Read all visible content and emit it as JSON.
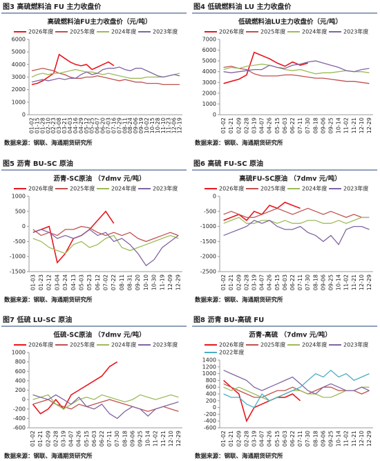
{
  "chart_data": [
    {
      "type": "line",
      "heading": "图3  高硫燃料油 FU 主力收盘价",
      "title": "高硫燃料油FU主力收盘价（元/吨）",
      "source": "数据来源：钢联、海通期货研究所",
      "categories": [
        "01-02",
        "01-15",
        "01-28",
        "02-10",
        "02-23",
        "03-08",
        "03-21",
        "04-03",
        "04-16",
        "04-29",
        "05-12",
        "05-25",
        "06-07",
        "06-20",
        "07-03",
        "07-16",
        "07-29",
        "08-11",
        "08-24",
        "09-06",
        "09-19",
        "10-02",
        "10-15",
        "10-28",
        "11-10",
        "11-23",
        "12-06",
        "12-19"
      ],
      "ylim": [
        0,
        6000
      ],
      "yticks": [
        0,
        1000,
        2000,
        3000,
        4000,
        5000,
        6000
      ],
      "grid": false,
      "series": [
        {
          "name": "2026年度",
          "color": "#e8141b",
          "values": [
            2400,
            2500,
            2700,
            3000,
            3300,
            4800,
            4500,
            4200,
            4000,
            3900,
            4000,
            3600,
            3800,
            4000,
            4200,
            3900,
            null,
            null,
            null,
            null,
            null,
            null,
            null,
            null,
            null,
            null,
            null,
            null
          ]
        },
        {
          "name": "2025年度",
          "color": "#c0504d",
          "values": [
            3500,
            3600,
            3700,
            3600,
            3500,
            3300,
            3200,
            3000,
            2900,
            2900,
            3000,
            3000,
            3100,
            3000,
            2900,
            2800,
            2700,
            2800,
            2700,
            2600,
            2600,
            2500,
            2500,
            2500,
            2400,
            2400,
            2400,
            2400
          ]
        },
        {
          "name": "2024年度",
          "color": "#9bbb59",
          "values": [
            3000,
            3200,
            3300,
            3200,
            3300,
            3300,
            3400,
            3500,
            3600,
            3500,
            3400,
            3400,
            3300,
            3200,
            3300,
            3200,
            3100,
            3000,
            2900,
            2900,
            2900,
            3000,
            3000,
            3000,
            3000,
            3100,
            3200,
            3300
          ]
        },
        {
          "name": "2023年度",
          "color": "#8064a2",
          "values": [
            2600,
            2700,
            2800,
            2700,
            2800,
            2900,
            2800,
            2900,
            2900,
            3200,
            3400,
            3200,
            3300,
            3600,
            3700,
            3700,
            3800,
            3600,
            3500,
            3700,
            3700,
            3500,
            3300,
            3100,
            3000,
            3100,
            3200,
            3100
          ]
        }
      ]
    },
    {
      "type": "line",
      "heading": "图4  低硫燃料油 LU 主力收盘价",
      "title": "低硫燃料油LU主力收盘价（元/吨）",
      "source": "数据来源：钢联、海通期货研究所",
      "categories": [
        "01-02",
        "01-21",
        "02-09",
        "02-28",
        "03-19",
        "04-07",
        "04-26",
        "05-15",
        "06-03",
        "06-22",
        "07-11",
        "07-30",
        "08-18",
        "09-06",
        "09-25",
        "10-14",
        "11-02",
        "11-21",
        "12-10",
        "12-29"
      ],
      "ylim": [
        0,
        7000
      ],
      "yticks": [
        0,
        1000,
        2000,
        3000,
        4000,
        5000,
        6000,
        7000
      ],
      "grid": false,
      "series": [
        {
          "name": "2026年度",
          "color": "#e8141b",
          "values": [
            2900,
            3100,
            3300,
            3700,
            5800,
            5500,
            5200,
            4800,
            4500,
            4900,
            4600,
            4800,
            null,
            null,
            null,
            null,
            null,
            null,
            null,
            null
          ]
        },
        {
          "name": "2025年度",
          "color": "#c0504d",
          "values": [
            4400,
            4500,
            4300,
            4200,
            3800,
            3600,
            3600,
            3600,
            3700,
            3700,
            3600,
            3500,
            3400,
            3400,
            3300,
            3200,
            3100,
            3100,
            3000,
            2900
          ]
        },
        {
          "name": "2024年度",
          "color": "#9bbb59",
          "values": [
            4200,
            4400,
            4300,
            4500,
            4600,
            4700,
            4600,
            4400,
            4200,
            4100,
            4200,
            4000,
            3800,
            3900,
            3900,
            4000,
            4100,
            4000,
            4000,
            3900
          ]
        },
        {
          "name": "2023年度",
          "color": "#8064a2",
          "values": [
            4000,
            3900,
            4000,
            4100,
            4200,
            4200,
            4600,
            4400,
            4300,
            4600,
            4700,
            4900,
            5000,
            4800,
            4600,
            4400,
            4100,
            4000,
            4200,
            4300
          ]
        }
      ]
    },
    {
      "type": "line",
      "heading": "图5  沥青 BU-SC 原油",
      "title": "沥青-SC原油 （7dmv 元/吨）",
      "source": "数据来源：钢联、海通期货研究所",
      "categories": [
        "01-03",
        "01-23",
        "02-12",
        "03-04",
        "03-24",
        "04-13",
        "05-03",
        "05-23",
        "06-12",
        "07-02",
        "07-22",
        "08-11",
        "08-31",
        "09-20",
        "10-10",
        "10-30",
        "11-19",
        "12-09",
        "12-29"
      ],
      "ylim": [
        -1500,
        1000
      ],
      "yticks": [
        -1500,
        -1000,
        -500,
        0,
        500,
        1000
      ],
      "grid": false,
      "series": [
        {
          "name": "2026年度",
          "color": "#e8141b",
          "values": [
            -200,
            -100,
            0,
            -1200,
            -900,
            -400,
            -300,
            -100,
            200,
            500,
            100,
            null,
            null,
            null,
            null,
            null,
            null,
            null,
            null
          ]
        },
        {
          "name": "2025年度",
          "color": "#c0504d",
          "values": [
            -100,
            -300,
            -200,
            -300,
            -100,
            -100,
            0,
            -50,
            -200,
            -300,
            -200,
            -300,
            -200,
            -400,
            -500,
            -400,
            -300,
            -200,
            -300
          ]
        },
        {
          "name": "2024年度",
          "color": "#9bbb59",
          "values": [
            -400,
            -500,
            -700,
            -800,
            -900,
            -600,
            -500,
            -700,
            -600,
            -400,
            -300,
            -700,
            -800,
            -700,
            -600,
            -500,
            -400,
            -300,
            -400
          ]
        },
        {
          "name": "2023年度",
          "color": "#8064a2",
          "values": [
            -200,
            -100,
            -200,
            -400,
            -300,
            -400,
            -300,
            -100,
            -300,
            -200,
            -500,
            -400,
            -600,
            -900,
            -1300,
            -1100,
            -700,
            -500,
            -300
          ]
        }
      ]
    },
    {
      "type": "line",
      "heading": "图6  高硫 FU-SC 原油",
      "title": "高硫FU-SC原油 （7dmv 元/吨）",
      "source": "数据来源：钢联、海通期货研究所",
      "categories": [
        "01-02",
        "01-21",
        "02-09",
        "02-28",
        "03-19",
        "04-07",
        "04-26",
        "05-15",
        "06-03",
        "06-22",
        "07-11",
        "07-30",
        "08-18",
        "09-06",
        "09-25",
        "10-14",
        "11-02",
        "11-21",
        "12-10",
        "12-29"
      ],
      "ylim": [
        -2500,
        0
      ],
      "yticks": [
        -2500,
        -2000,
        -1500,
        -1000,
        -500,
        0
      ],
      "grid": false,
      "series": [
        {
          "name": "2026年度",
          "color": "#e8141b",
          "values": [
            -800,
            -700,
            -600,
            -800,
            -500,
            -600,
            -300,
            -400,
            -200,
            -300,
            -400,
            null,
            null,
            null,
            null,
            null,
            null,
            null,
            null,
            null
          ]
        },
        {
          "name": "2025年度",
          "color": "#c0504d",
          "values": [
            -600,
            -500,
            -600,
            -700,
            -700,
            -600,
            -500,
            -400,
            -500,
            -600,
            -500,
            -400,
            -500,
            -600,
            -500,
            -600,
            -700,
            -600,
            -700,
            -700
          ]
        },
        {
          "name": "2024年度",
          "color": "#9bbb59",
          "values": [
            -900,
            -800,
            -700,
            -900,
            -900,
            -800,
            -800,
            -900,
            -800,
            -900,
            -900,
            -800,
            -800,
            -900,
            -900,
            -800,
            -900,
            -800,
            -700,
            -700
          ]
        },
        {
          "name": "2023年度",
          "color": "#8064a2",
          "values": [
            -1300,
            -1200,
            -1100,
            -1000,
            -800,
            -900,
            -800,
            -1000,
            -1100,
            -1100,
            -1000,
            -1200,
            -1300,
            -1500,
            -1300,
            -1600,
            -1100,
            -1000,
            -1000,
            -1100
          ]
        }
      ]
    },
    {
      "type": "line",
      "heading": "图7  低硫 LU-SC 原油",
      "title": "低硫-SC原油 （7dmv 元/吨）",
      "source": "数据来源：钢联、海通期货研究所",
      "categories": [
        "01-02",
        "01-21",
        "02-09",
        "02-28",
        "03-19",
        "04-07",
        "04-26",
        "05-15",
        "06-03",
        "06-22",
        "07-11",
        "07-30",
        "08-18",
        "09-06",
        "09-25",
        "10-14",
        "11-02",
        "11-21",
        "12-10",
        "12-29"
      ],
      "ylim": [
        -600,
        1000
      ],
      "yticks": [
        -600,
        -400,
        -200,
        0,
        200,
        400,
        600,
        800,
        1000
      ],
      "grid": false,
      "series": [
        {
          "name": "2026年度",
          "color": "#e8141b",
          "values": [
            -100,
            -300,
            -200,
            0,
            -200,
            100,
            200,
            300,
            400,
            500,
            700,
            800,
            null,
            null,
            null,
            null,
            null,
            null,
            null,
            null
          ]
        },
        {
          "name": "2025年度",
          "color": "#c0504d",
          "values": [
            -100,
            -50,
            0,
            -100,
            -150,
            -200,
            -100,
            -150,
            -100,
            -50,
            0,
            -50,
            -100,
            -150,
            -200,
            -250,
            -200,
            -150,
            -200,
            -250
          ]
        },
        {
          "name": "2024年度",
          "color": "#9bbb59",
          "values": [
            0,
            50,
            100,
            -100,
            -200,
            -100,
            0,
            50,
            0,
            100,
            50,
            0,
            -50,
            0,
            100,
            50,
            0,
            50,
            100,
            50
          ]
        },
        {
          "name": "2023年度",
          "color": "#8064a2",
          "values": [
            100,
            50,
            0,
            100,
            0,
            -100,
            50,
            -150,
            -200,
            -100,
            -300,
            -400,
            -250,
            -150,
            -200,
            -350,
            -200,
            -150,
            -100,
            -50
          ]
        }
      ]
    },
    {
      "type": "line",
      "heading": "图8  沥青 BU-高硫 FU",
      "title": "沥青-高硫 （7dmv 元/吨）",
      "source": "数据来源：钢联、海通期货研究所",
      "categories": [
        "01-02",
        "01-21",
        "02-09",
        "02-28",
        "03-19",
        "04-07",
        "04-26",
        "05-15",
        "06-03",
        "06-22",
        "07-11",
        "07-30",
        "08-18",
        "09-06",
        "09-25",
        "10-14",
        "11-02",
        "11-21",
        "12-10",
        "12-29"
      ],
      "ylim": [
        -600,
        1400
      ],
      "yticks": [
        -600,
        -400,
        -200,
        0,
        200,
        400,
        600,
        800,
        1000,
        1200,
        1400
      ],
      "grid": false,
      "series": [
        {
          "name": "2026年度",
          "color": "#e8141b",
          "values": [
            800,
            600,
            400,
            -400,
            0,
            100,
            200,
            300,
            300,
            400,
            200,
            null,
            null,
            null,
            null,
            null,
            null,
            null,
            null,
            null
          ]
        },
        {
          "name": "2025年度",
          "color": "#c0504d",
          "values": [
            700,
            600,
            500,
            400,
            300,
            300,
            400,
            500,
            500,
            600,
            500,
            400,
            500,
            600,
            600,
            500,
            500,
            500,
            400,
            500
          ]
        },
        {
          "name": "2024年度",
          "color": "#9bbb59",
          "values": [
            600,
            500,
            600,
            500,
            400,
            300,
            200,
            300,
            400,
            500,
            500,
            400,
            400,
            300,
            300,
            400,
            500,
            500,
            600,
            600
          ]
        },
        {
          "name": "2023年度",
          "color": "#8064a2",
          "values": [
            1100,
            1000,
            900,
            800,
            600,
            500,
            600,
            700,
            800,
            900,
            700,
            500,
            400,
            600,
            700,
            600,
            500,
            500,
            600,
            500
          ]
        },
        {
          "name": "2022年度",
          "color": "#4bacc6",
          "values": [
            400,
            300,
            300,
            100,
            0,
            400,
            200,
            300,
            400,
            500,
            600,
            800,
            1000,
            900,
            1100,
            900,
            1000,
            800,
            900,
            1000
          ]
        }
      ]
    }
  ]
}
